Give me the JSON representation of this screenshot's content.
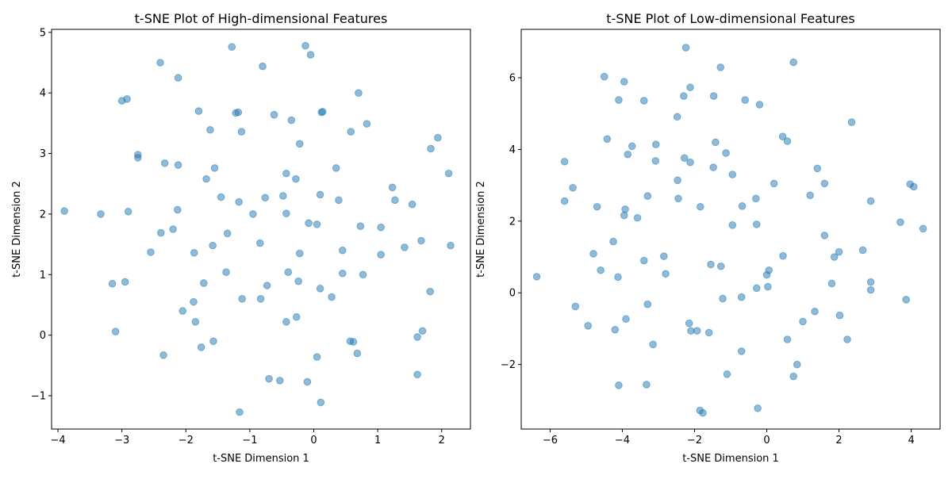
{
  "chart_data": [
    {
      "type": "scatter",
      "title": "t-SNE Plot of High-dimensional Features",
      "xlabel": "t-SNE Dimension 1",
      "ylabel": "t-SNE Dimension 2",
      "xlim": [
        -4.1,
        2.45
      ],
      "ylim": [
        -1.55,
        5.05
      ],
      "xticks": [
        -4,
        -3,
        -2,
        -1,
        0,
        1,
        2
      ],
      "yticks": [
        -1,
        0,
        1,
        2,
        3,
        4,
        5
      ],
      "grid": false,
      "color": "#1f77b4",
      "points": [
        [
          -3.9,
          2.05
        ],
        [
          -3.33,
          2.0
        ],
        [
          -2.9,
          2.04
        ],
        [
          -3.0,
          3.87
        ],
        [
          -2.92,
          3.9
        ],
        [
          -2.75,
          2.98
        ],
        [
          -2.75,
          2.93
        ],
        [
          -2.4,
          4.5
        ],
        [
          -2.12,
          4.25
        ],
        [
          -2.33,
          2.84
        ],
        [
          -2.12,
          2.81
        ],
        [
          -2.13,
          2.07
        ],
        [
          -2.39,
          1.69
        ],
        [
          -2.2,
          1.75
        ],
        [
          -2.55,
          1.37
        ],
        [
          -1.8,
          3.7
        ],
        [
          -1.62,
          3.39
        ],
        [
          -1.55,
          2.76
        ],
        [
          -1.68,
          2.58
        ],
        [
          -1.45,
          2.28
        ],
        [
          -1.28,
          4.76
        ],
        [
          -1.22,
          3.67
        ],
        [
          -1.18,
          3.68
        ],
        [
          -1.13,
          3.36
        ],
        [
          -0.8,
          4.44
        ],
        [
          -0.62,
          3.64
        ],
        [
          -0.35,
          3.55
        ],
        [
          -0.22,
          3.16
        ],
        [
          -0.13,
          4.78
        ],
        [
          -0.05,
          4.63
        ],
        [
          0.12,
          3.68
        ],
        [
          0.14,
          3.69
        ],
        [
          0.58,
          3.36
        ],
        [
          0.7,
          4.0
        ],
        [
          0.83,
          3.49
        ],
        [
          1.94,
          3.26
        ],
        [
          1.83,
          3.08
        ],
        [
          2.11,
          2.67
        ],
        [
          0.35,
          2.76
        ],
        [
          -0.43,
          2.67
        ],
        [
          -0.28,
          2.58
        ],
        [
          -1.17,
          2.2
        ],
        [
          -0.76,
          2.27
        ],
        [
          -0.48,
          2.3
        ],
        [
          -0.95,
          2.0
        ],
        [
          -0.43,
          2.01
        ],
        [
          0.1,
          2.32
        ],
        [
          0.39,
          2.23
        ],
        [
          1.23,
          2.44
        ],
        [
          1.27,
          2.23
        ],
        [
          1.54,
          2.16
        ],
        [
          -0.08,
          1.85
        ],
        [
          0.05,
          1.83
        ],
        [
          0.73,
          1.8
        ],
        [
          1.05,
          1.78
        ],
        [
          1.68,
          1.56
        ],
        [
          1.42,
          1.45
        ],
        [
          2.14,
          1.48
        ],
        [
          -1.35,
          1.68
        ],
        [
          -1.58,
          1.48
        ],
        [
          -0.84,
          1.52
        ],
        [
          -1.87,
          1.36
        ],
        [
          -0.22,
          1.35
        ],
        [
          0.45,
          1.4
        ],
        [
          1.05,
          1.33
        ],
        [
          -1.37,
          1.04
        ],
        [
          -0.4,
          1.04
        ],
        [
          0.45,
          1.02
        ],
        [
          0.77,
          1.0
        ],
        [
          -3.15,
          0.85
        ],
        [
          -2.95,
          0.88
        ],
        [
          -1.72,
          0.86
        ],
        [
          -0.73,
          0.82
        ],
        [
          -0.24,
          0.89
        ],
        [
          0.1,
          0.77
        ],
        [
          0.28,
          0.63
        ],
        [
          1.82,
          0.72
        ],
        [
          -1.88,
          0.55
        ],
        [
          -1.12,
          0.6
        ],
        [
          -0.83,
          0.6
        ],
        [
          -2.05,
          0.4
        ],
        [
          -1.85,
          0.22
        ],
        [
          -0.43,
          0.22
        ],
        [
          -0.27,
          0.3
        ],
        [
          -3.1,
          0.06
        ],
        [
          1.7,
          0.07
        ],
        [
          1.62,
          -0.03
        ],
        [
          0.57,
          -0.1
        ],
        [
          0.62,
          -0.11
        ],
        [
          -1.57,
          -0.1
        ],
        [
          -1.76,
          -0.2
        ],
        [
          -2.35,
          -0.33
        ],
        [
          0.68,
          -0.3
        ],
        [
          0.05,
          -0.36
        ],
        [
          -0.7,
          -0.72
        ],
        [
          -0.53,
          -0.75
        ],
        [
          -0.1,
          -0.77
        ],
        [
          1.62,
          -0.65
        ],
        [
          0.11,
          -1.11
        ],
        [
          -1.16,
          -1.27
        ]
      ]
    },
    {
      "type": "scatter",
      "title": "t-SNE Plot of Low-dimensional Features",
      "xlabel": "t-SNE Dimension 1",
      "ylabel": "t-SNE Dimension 2",
      "xlim": [
        -6.8,
        4.8
      ],
      "ylim": [
        -3.8,
        7.35
      ],
      "xticks": [
        -6,
        -4,
        -2,
        0,
        2,
        4
      ],
      "yticks": [
        -2,
        0,
        2,
        4,
        6
      ],
      "grid": false,
      "color": "#1f77b4",
      "points": [
        [
          -2.24,
          6.84
        ],
        [
          -1.28,
          6.29
        ],
        [
          0.74,
          6.43
        ],
        [
          -4.5,
          6.03
        ],
        [
          -3.95,
          5.89
        ],
        [
          -2.12,
          5.73
        ],
        [
          -2.3,
          5.49
        ],
        [
          -1.47,
          5.49
        ],
        [
          -4.1,
          5.38
        ],
        [
          -3.4,
          5.36
        ],
        [
          -0.6,
          5.38
        ],
        [
          -0.2,
          5.25
        ],
        [
          -2.48,
          4.91
        ],
        [
          2.35,
          4.76
        ],
        [
          0.44,
          4.36
        ],
        [
          0.57,
          4.23
        ],
        [
          -4.42,
          4.29
        ],
        [
          -3.73,
          4.09
        ],
        [
          -3.07,
          4.14
        ],
        [
          -1.42,
          4.2
        ],
        [
          -1.13,
          3.9
        ],
        [
          -3.85,
          3.86
        ],
        [
          -5.6,
          3.66
        ],
        [
          -3.08,
          3.68
        ],
        [
          -2.28,
          3.76
        ],
        [
          -2.12,
          3.64
        ],
        [
          -1.48,
          3.5
        ],
        [
          -0.95,
          3.3
        ],
        [
          1.4,
          3.47
        ],
        [
          -2.47,
          3.14
        ],
        [
          0.2,
          3.05
        ],
        [
          1.6,
          3.05
        ],
        [
          3.97,
          3.03
        ],
        [
          4.07,
          2.96
        ],
        [
          -5.37,
          2.93
        ],
        [
          -3.3,
          2.7
        ],
        [
          -2.45,
          2.63
        ],
        [
          -0.3,
          2.63
        ],
        [
          1.2,
          2.72
        ],
        [
          2.88,
          2.56
        ],
        [
          -5.6,
          2.56
        ],
        [
          -4.7,
          2.4
        ],
        [
          -3.92,
          2.33
        ],
        [
          -3.58,
          2.09
        ],
        [
          -3.95,
          2.16
        ],
        [
          -1.84,
          2.4
        ],
        [
          -0.68,
          2.42
        ],
        [
          3.7,
          1.97
        ],
        [
          4.33,
          1.79
        ],
        [
          -0.95,
          1.89
        ],
        [
          -0.28,
          1.91
        ],
        [
          1.6,
          1.6
        ],
        [
          -4.25,
          1.43
        ],
        [
          -4.8,
          1.09
        ],
        [
          -2.85,
          1.02
        ],
        [
          -3.4,
          0.9
        ],
        [
          0.45,
          1.03
        ],
        [
          2.0,
          1.14
        ],
        [
          2.66,
          1.19
        ],
        [
          1.87,
          1.0
        ],
        [
          -4.6,
          0.63
        ],
        [
          -1.55,
          0.79
        ],
        [
          -1.27,
          0.74
        ],
        [
          0.06,
          0.63
        ],
        [
          -6.37,
          0.45
        ],
        [
          -4.12,
          0.44
        ],
        [
          -2.8,
          0.53
        ],
        [
          0.0,
          0.5
        ],
        [
          2.88,
          0.3
        ],
        [
          1.8,
          0.26
        ],
        [
          -0.28,
          0.13
        ],
        [
          0.03,
          0.17
        ],
        [
          2.88,
          0.08
        ],
        [
          -1.22,
          -0.16
        ],
        [
          -0.7,
          -0.12
        ],
        [
          3.86,
          -0.19
        ],
        [
          -5.3,
          -0.38
        ],
        [
          -3.3,
          -0.32
        ],
        [
          1.33,
          -0.52
        ],
        [
          2.02,
          -0.63
        ],
        [
          -4.95,
          -0.92
        ],
        [
          -3.9,
          -0.73
        ],
        [
          -4.2,
          -1.03
        ],
        [
          -2.15,
          -0.85
        ],
        [
          -2.1,
          -1.06
        ],
        [
          -1.93,
          -1.06
        ],
        [
          -1.6,
          -1.11
        ],
        [
          1.0,
          -0.8
        ],
        [
          -3.15,
          -1.44
        ],
        [
          0.57,
          -1.3
        ],
        [
          2.23,
          -1.3
        ],
        [
          -0.7,
          -1.63
        ],
        [
          0.84,
          -2.0
        ],
        [
          -1.1,
          -2.27
        ],
        [
          0.74,
          -2.33
        ],
        [
          -4.1,
          -2.58
        ],
        [
          -3.33,
          -2.56
        ],
        [
          -0.25,
          -3.22
        ],
        [
          -1.85,
          -3.28
        ],
        [
          -1.77,
          -3.35
        ]
      ]
    }
  ]
}
